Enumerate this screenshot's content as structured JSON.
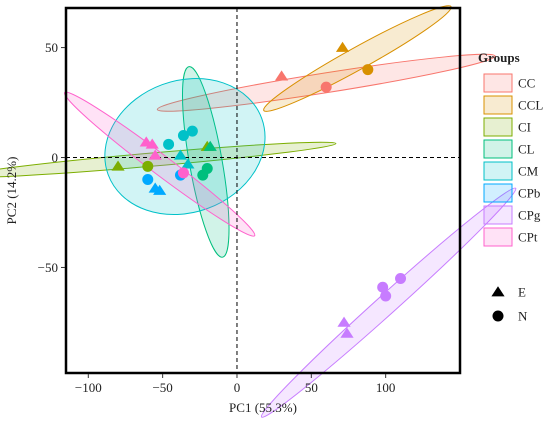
{
  "chart_data": {
    "type": "scatter",
    "xlabel": "PC1 (55.3%)",
    "ylabel": "PC2 (14.2%)",
    "xlim": [
      -115,
      150
    ],
    "ylim": [
      -98,
      68
    ],
    "x_ticks": [
      -100,
      -50,
      0,
      50,
      100
    ],
    "y_ticks": [
      -50,
      0,
      50
    ],
    "x_tick_labels": [
      "−100",
      "−50",
      "0",
      "50",
      "100"
    ],
    "y_tick_labels": [
      "−50",
      "0",
      "50"
    ],
    "reference_lines": {
      "x": 0,
      "y": 0,
      "style": "dashed"
    },
    "grid": false,
    "legend": {
      "placement": "right",
      "groups_title": "Groups",
      "shapes": [
        {
          "label": "E",
          "marker": "triangle"
        },
        {
          "label": "N",
          "marker": "circle"
        }
      ]
    },
    "series": [
      {
        "name": "CC",
        "color": "#F8766D",
        "points": [
          {
            "x": 30,
            "y": 37,
            "shape": "E"
          },
          {
            "x": 60,
            "y": 32,
            "shape": "N"
          }
        ],
        "ellipse": {
          "cx": 60,
          "cy": 34,
          "rx": 115,
          "ry": 4.5,
          "angle_deg": 9
        }
      },
      {
        "name": "CCL",
        "color": "#D89000",
        "points": [
          {
            "x": 71,
            "y": 50,
            "shape": "E"
          },
          {
            "x": 88,
            "y": 40,
            "shape": "N"
          }
        ],
        "ellipse": {
          "cx": 81,
          "cy": 45,
          "rx": 72,
          "ry": 5,
          "angle_deg": 29
        }
      },
      {
        "name": "CI",
        "color": "#7CAE00",
        "points": [
          {
            "x": -80,
            "y": -4,
            "shape": "E"
          },
          {
            "x": -60,
            "y": -4,
            "shape": "N"
          },
          {
            "x": -20,
            "y": 5,
            "shape": "E"
          }
        ],
        "ellipse": {
          "cx": -58,
          "cy": -1,
          "rx": 125,
          "ry": 3,
          "angle_deg": 5
        }
      },
      {
        "name": "CL",
        "color": "#00BF7D",
        "points": [
          {
            "x": -18,
            "y": 5,
            "shape": "E"
          },
          {
            "x": -23,
            "y": -8,
            "shape": "N"
          },
          {
            "x": -20,
            "y": -5,
            "shape": "N"
          }
        ],
        "ellipse": {
          "cx": -21,
          "cy": -2,
          "rx": 11,
          "ry": 44,
          "angle_deg": 10
        }
      },
      {
        "name": "CM",
        "color": "#00C1C8",
        "points": [
          {
            "x": -46,
            "y": 6,
            "shape": "N"
          },
          {
            "x": -36,
            "y": 10,
            "shape": "N"
          },
          {
            "x": -30,
            "y": 12,
            "shape": "N"
          },
          {
            "x": -38,
            "y": 1,
            "shape": "E"
          },
          {
            "x": -33,
            "y": -3,
            "shape": "E"
          }
        ],
        "ellipse": {
          "cx": -35,
          "cy": 5,
          "rx": 55,
          "ry": 30,
          "angle_deg": 20
        }
      },
      {
        "name": "CPb",
        "color": "#00A9FF",
        "points": [
          {
            "x": -60,
            "y": -10,
            "shape": "N"
          },
          {
            "x": -55,
            "y": -14,
            "shape": "E"
          },
          {
            "x": -52,
            "y": -15,
            "shape": "E"
          },
          {
            "x": -38,
            "y": -8,
            "shape": "N"
          }
        ],
        "ellipse": null
      },
      {
        "name": "CPg",
        "color": "#C77CFF",
        "points": [
          {
            "x": 98,
            "y": -59,
            "shape": "N"
          },
          {
            "x": 100,
            "y": -63,
            "shape": "N"
          },
          {
            "x": 110,
            "y": -55,
            "shape": "N"
          },
          {
            "x": 72,
            "y": -75,
            "shape": "E"
          },
          {
            "x": 74,
            "y": -80,
            "shape": "E"
          }
        ],
        "ellipse": {
          "cx": 102,
          "cy": -66,
          "rx": 115,
          "ry": 4.5,
          "angle_deg": 42
        }
      },
      {
        "name": "CPt",
        "color": "#FF61CC",
        "points": [
          {
            "x": -61,
            "y": 7,
            "shape": "E"
          },
          {
            "x": -57,
            "y": 6,
            "shape": "E"
          },
          {
            "x": -55,
            "y": 1,
            "shape": "E"
          },
          {
            "x": -36,
            "y": -7,
            "shape": "N"
          }
        ],
        "ellipse": {
          "cx": -52,
          "cy": -3,
          "rx": 80,
          "ry": 4.5,
          "angle_deg": -37
        }
      }
    ]
  }
}
